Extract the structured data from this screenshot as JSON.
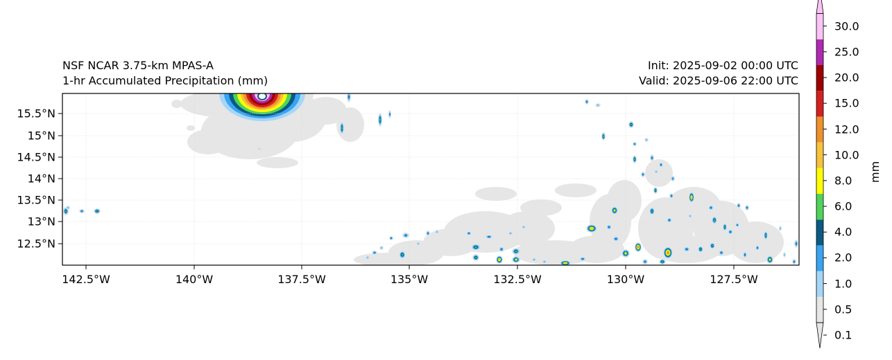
{
  "title_left": {
    "line1": "NSF NCAR 3.75-km MPAS-A",
    "line2": "1-hr Accumulated Precipitation (mm)"
  },
  "title_right": {
    "line1": "Init: 2025-09-02 00:00 UTC",
    "line2": "Valid: 2025-09-06 22:00 UTC"
  },
  "axes": {
    "lon_ticks": [
      "142.5°W",
      "140°W",
      "137.5°W",
      "135°W",
      "132.5°W",
      "130°W",
      "127.5°W"
    ],
    "lat_ticks": [
      "15.5°N",
      "15°N",
      "14.5°N",
      "14°N",
      "13.5°N",
      "13°N",
      "12.5°N"
    ],
    "lon_range": [
      -143.0,
      -125.9
    ],
    "lat_range": [
      12.0,
      16.0
    ]
  },
  "colorbar": {
    "label": "mm",
    "levels": [
      "0.1",
      "0.5",
      "1.0",
      "2.0",
      "4.0",
      "6.0",
      "8.0",
      "10.0",
      "12.0",
      "15.0",
      "20.0",
      "25.0",
      "30.0"
    ],
    "colors": [
      "#e6e6e6",
      "#a6d6f7",
      "#39a4f2",
      "#0a5a82",
      "#4fd35a",
      "#ffff00",
      "#f7c23c",
      "#ee902c",
      "#d42020",
      "#9e0000",
      "#b02ab0",
      "#fac3f5"
    ]
  }
}
